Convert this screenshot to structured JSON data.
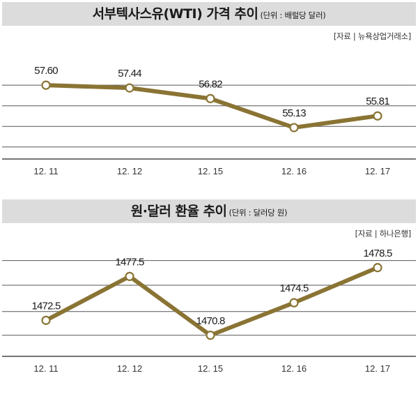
{
  "chart_data": [
    {
      "type": "line",
      "title": "서부텍사스유(WTI) 가격 추이",
      "unit": "(단위 : 배럴당 달러)",
      "source": "[자료 | 뉴욕상업거래소]",
      "categories": [
        "12. 11",
        "12. 12",
        "12. 15",
        "12. 16",
        "12. 17"
      ],
      "values": [
        57.6,
        57.44,
        56.82,
        55.13,
        55.81
      ],
      "labels": [
        "57.60",
        "57.44",
        "56.82",
        "55.13",
        "55.81"
      ],
      "ylim": [
        53.3,
        59.8
      ],
      "gridlines": [
        57.6,
        56.4,
        55.2,
        54.0
      ],
      "line_color": "#8a7434"
    },
    {
      "type": "line",
      "title": "원·달러 환율 추이",
      "unit": "(단위 : 달러당 원)",
      "source": "[자료 | 하나은행]",
      "categories": [
        "12. 11",
        "12. 12",
        "12. 15",
        "12. 16",
        "12. 17"
      ],
      "values": [
        1472.5,
        1477.5,
        1470.8,
        1474.5,
        1478.5
      ],
      "labels": [
        "1472.5",
        "1477.5",
        "1470.8",
        "1474.5",
        "1478.5"
      ],
      "ylim": [
        1468.4,
        1481.1
      ],
      "gridlines": [
        1479.3,
        1476.5,
        1473.5,
        1470.8
      ],
      "line_color": "#8a7434"
    }
  ]
}
